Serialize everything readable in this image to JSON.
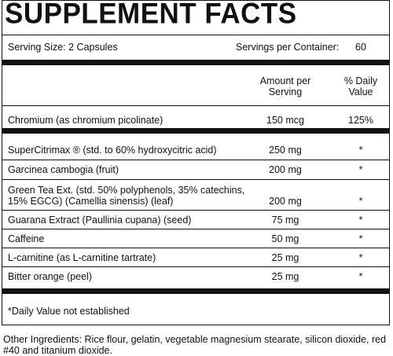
{
  "header": {
    "title": "SUPPLEMENT FACTS",
    "serving_size": "Serving Size: 2 Capsules",
    "servings_per_container_label": "Servings per Container:",
    "servings_per_container": "60"
  },
  "table": {
    "columns": [
      "Amount per\nServing",
      "% Daily\nValue"
    ],
    "rows": [
      {
        "name": "Chromium (as chromium picolinate)",
        "amount": "150 mcg",
        "daily_value": "125%"
      },
      {
        "name": "SuperCitrimax ® (std. to 60% hydroxycitric acid)",
        "amount": "250 mg",
        "daily_value": "*"
      },
      {
        "name": "Garcinea cambogia (fruit)",
        "amount": "200 mg",
        "daily_value": "*"
      },
      {
        "name": "Green Tea Ext. (std. 50% polyphenols, 35% catechins,\n    15% EGCG) (Camellia sinensis) (leaf)",
        "amount": "200 mg",
        "daily_value": "*"
      },
      {
        "name": "Guarana Extract (Paullinia cupana) (seed)",
        "amount": "75 mg",
        "daily_value": "*"
      },
      {
        "name": "Caffeine",
        "amount": "50 mg",
        "daily_value": "*"
      },
      {
        "name": "L-carnitine (as L-carnitine tartrate)",
        "amount": "25 mg",
        "daily_value": "*"
      },
      {
        "name": "Bitter orange (peel)",
        "amount": "25 mg",
        "daily_value": "*"
      }
    ]
  },
  "footnote": "*Daily Value not established",
  "other_ingredients": "Other Ingredients: Rice flour, gelatin, vegetable magnesium stearate, silicon dioxide, red #40 and titanium dioxide."
}
